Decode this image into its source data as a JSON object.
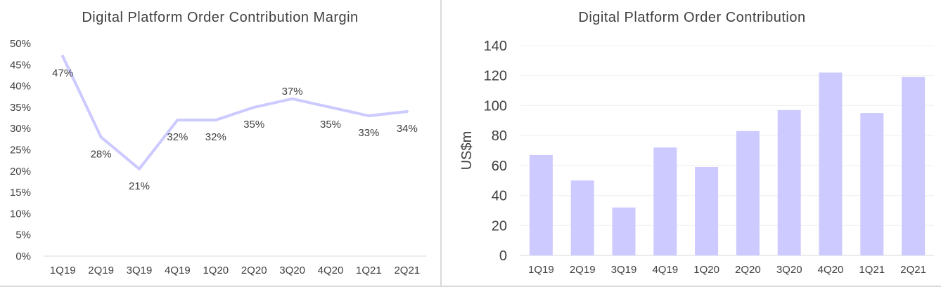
{
  "chart_data": [
    {
      "type": "line",
      "title": "Digital Platform Order Contribution Margin",
      "xlabel": "",
      "ylabel": "",
      "categories": [
        "1Q19",
        "2Q19",
        "3Q19",
        "4Q19",
        "1Q20",
        "2Q20",
        "3Q20",
        "4Q20",
        "1Q21",
        "2Q21"
      ],
      "values": [
        47,
        28,
        20.5,
        32,
        32,
        35,
        37,
        35,
        33,
        34
      ],
      "data_labels": [
        "47%",
        "28%",
        "21%",
        "32%",
        "32%",
        "35%",
        "37%",
        "35%",
        "33%",
        "34%"
      ],
      "y_ticks": [
        "0%",
        "5%",
        "10%",
        "15%",
        "20%",
        "25%",
        "30%",
        "35%",
        "40%",
        "45%",
        "50%"
      ],
      "ylim": [
        0,
        50
      ],
      "grid": false,
      "legend": "none",
      "color": "#cccaff"
    },
    {
      "type": "bar",
      "title": "Digital Platform Order Contribution",
      "xlabel": "",
      "ylabel": "US$m",
      "categories": [
        "1Q19",
        "2Q19",
        "3Q19",
        "4Q19",
        "1Q20",
        "2Q20",
        "3Q20",
        "4Q20",
        "1Q21",
        "2Q21"
      ],
      "values": [
        67,
        50,
        32,
        72,
        59,
        83,
        97,
        122,
        95,
        119
      ],
      "y_ticks": [
        "0",
        "20",
        "40",
        "60",
        "80",
        "100",
        "120",
        "140"
      ],
      "ylim": [
        0,
        140
      ],
      "grid": true,
      "legend": "none",
      "color": "#cccaff"
    }
  ]
}
